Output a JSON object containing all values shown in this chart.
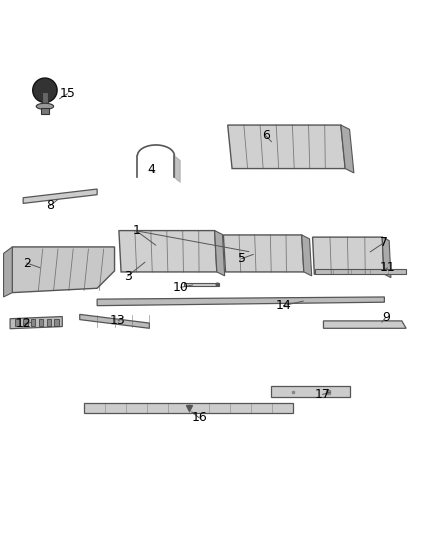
{
  "background_color": "#ffffff",
  "fig_width": 4.38,
  "fig_height": 5.33,
  "dpi": 100,
  "line_color": "#555555",
  "text_color": "#000000",
  "part_font_size": 9
}
